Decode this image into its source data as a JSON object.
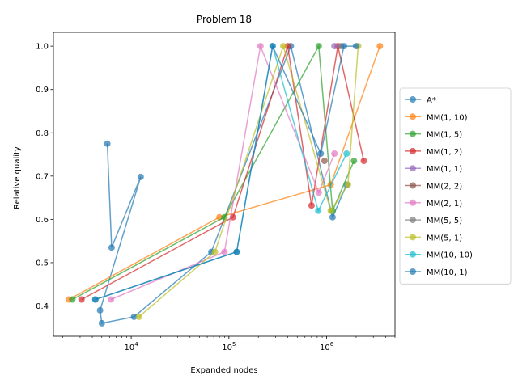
{
  "chart_data": {
    "type": "line",
    "title": "Problem 18",
    "xlabel": "Expanded nodes",
    "ylabel": "Relative quality",
    "xscale": "log",
    "xlim": [
      1600,
      5000000
    ],
    "ylim": [
      0.33,
      1.032
    ],
    "yticks": [
      0.4,
      0.5,
      0.6,
      0.7,
      0.8,
      0.9,
      1.0
    ],
    "ytick_labels": [
      "0.4",
      "0.5",
      "0.6",
      "0.7",
      "0.8",
      "0.9",
      "1.0"
    ],
    "xticks": [
      10000,
      100000,
      1000000
    ],
    "xtick_labels": [
      {
        "base": "10",
        "exp": "4"
      },
      {
        "base": "10",
        "exp": "5"
      },
      {
        "base": "10",
        "exp": "6"
      }
    ],
    "legend_position": "center-right",
    "series": [
      {
        "name": "A*",
        "color": "#1f77b4",
        "points": [
          [
            5700,
            0.775
          ],
          [
            6300,
            0.535
          ],
          [
            12500,
            0.698
          ],
          [
            4800,
            0.39
          ],
          [
            5000,
            0.36
          ],
          [
            10700,
            0.375
          ],
          [
            66000,
            0.525
          ],
          [
            430000,
            1.0
          ],
          [
            1150000,
            0.605
          ],
          [
            1600000,
            0.68
          ]
        ]
      },
      {
        "name": "MM(1, 10)",
        "color": "#ff7f0e",
        "points": [
          [
            2300,
            0.415
          ],
          [
            80000,
            0.605
          ],
          [
            1100000,
            0.68
          ],
          [
            3500000,
            1.0
          ]
        ]
      },
      {
        "name": "MM(1, 5)",
        "color": "#2ca02c",
        "points": [
          [
            2500,
            0.415
          ],
          [
            90000,
            0.605
          ],
          [
            830000,
            1.0
          ],
          [
            1150000,
            0.62
          ],
          [
            1900000,
            0.735
          ]
        ]
      },
      {
        "name": "MM(1, 2)",
        "color": "#d62728",
        "points": [
          [
            3100,
            0.415
          ],
          [
            110000,
            0.605
          ],
          [
            400000,
            1.0
          ],
          [
            700000,
            0.632
          ],
          [
            1300000,
            1.0
          ],
          [
            2400000,
            0.735
          ]
        ]
      },
      {
        "name": "MM(1, 1)",
        "color": "#9467bd",
        "points": [
          [
            1200000,
            1.0
          ]
        ]
      },
      {
        "name": "MM(2, 2)",
        "color": "#8c564b",
        "points": [
          [
            950000,
            0.735
          ]
        ]
      },
      {
        "name": "MM(2, 1)",
        "color": "#e377c2",
        "points": [
          [
            6200,
            0.415
          ],
          [
            90000,
            0.525
          ],
          [
            210000,
            1.0
          ],
          [
            830000,
            0.662
          ],
          [
            1200000,
            0.752
          ]
        ]
      },
      {
        "name": "MM(5, 5)",
        "color": "#7f7f7f",
        "points": [
          [
            1400000,
            1.0
          ]
        ]
      },
      {
        "name": "MM(5, 1)",
        "color": "#bcbd22",
        "points": [
          [
            12000,
            0.375
          ],
          [
            72000,
            0.525
          ],
          [
            360000,
            1.0
          ],
          [
            1100000,
            0.62
          ],
          [
            1650000,
            0.68
          ],
          [
            2100000,
            1.0
          ]
        ]
      },
      {
        "name": "MM(10, 10)",
        "color": "#17becf",
        "points": [
          [
            4300,
            0.415
          ],
          [
            120000,
            0.525
          ],
          [
            280000,
            1.0
          ],
          [
            820000,
            0.62
          ],
          [
            1600000,
            0.752
          ]
        ]
      },
      {
        "name": "MM(10, 1)",
        "color": "#1f77b4",
        "points": [
          [
            4300,
            0.415
          ],
          [
            120000,
            0.525
          ],
          [
            280000,
            1.0
          ],
          [
            870000,
            0.752
          ],
          [
            1500000,
            1.0
          ],
          [
            2000000,
            1.0
          ]
        ]
      }
    ]
  }
}
